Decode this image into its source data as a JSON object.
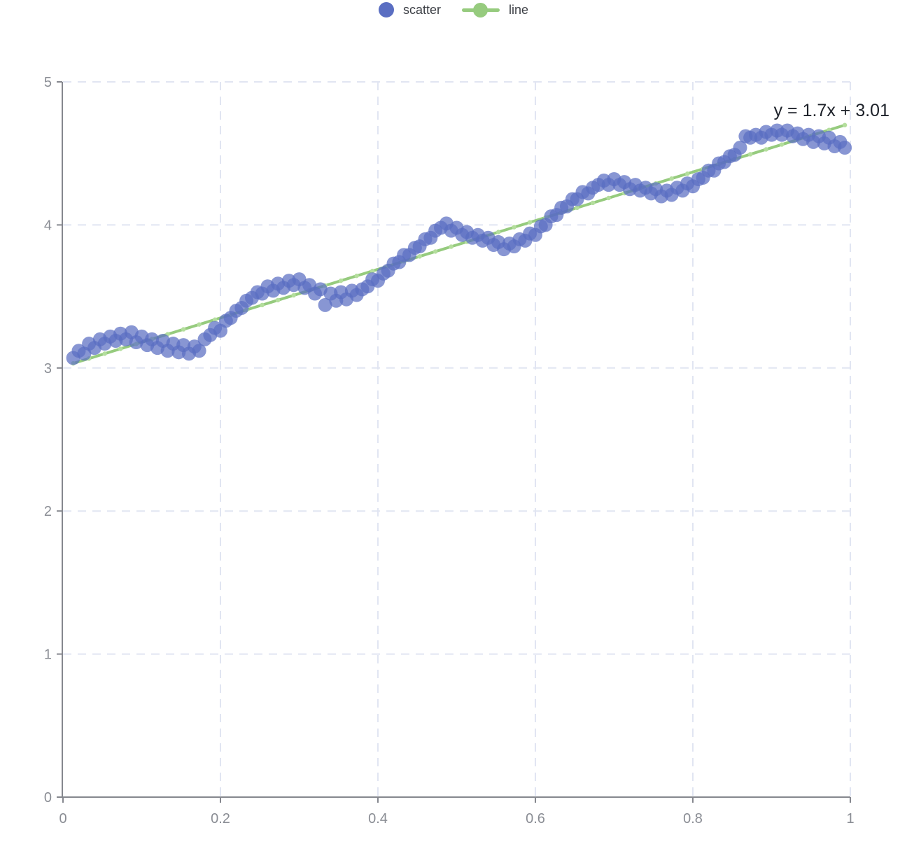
{
  "chart_data": {
    "type": "scatter",
    "title": "",
    "annotation": "y = 1.7x + 3.01",
    "legend": {
      "position": "top",
      "items": [
        {
          "label": "scatter",
          "marker": "circle"
        },
        {
          "label": "line",
          "marker": "line-with-dot"
        }
      ]
    },
    "x_axis": {
      "label": "",
      "range": [
        0,
        1
      ],
      "ticks": [
        0,
        0.2,
        0.4,
        0.6,
        0.8,
        1
      ],
      "tick_labels": [
        "0",
        "0.2",
        "0.4",
        "0.6",
        "0.8",
        "1"
      ],
      "grid": true
    },
    "y_axis": {
      "label": "",
      "range": [
        0,
        5
      ],
      "ticks": [
        0,
        1,
        2,
        3,
        4,
        5
      ],
      "tick_labels": [
        "0",
        "1",
        "2",
        "3",
        "4",
        "5"
      ],
      "grid": true
    },
    "colors": {
      "scatter": "#5A6EC2",
      "line": "#96CB7E",
      "line_marker": "#B4DE9D",
      "grid": "#E1E5F2",
      "axis": "#85878E",
      "tick_label": "#8A8D94",
      "legend_text": "#3C3F45",
      "annotation": "#1D2129",
      "background": "#FFFFFF"
    },
    "series": [
      {
        "name": "scatter",
        "type": "scatter",
        "marker_radius": 10,
        "marker_opacity": 0.72,
        "points": [
          [
            0.013,
            3.07
          ],
          [
            0.02,
            3.12
          ],
          [
            0.027,
            3.1
          ],
          [
            0.033,
            3.17
          ],
          [
            0.04,
            3.14
          ],
          [
            0.047,
            3.2
          ],
          [
            0.053,
            3.17
          ],
          [
            0.06,
            3.22
          ],
          [
            0.067,
            3.19
          ],
          [
            0.073,
            3.24
          ],
          [
            0.08,
            3.2
          ],
          [
            0.087,
            3.25
          ],
          [
            0.093,
            3.18
          ],
          [
            0.1,
            3.22
          ],
          [
            0.107,
            3.16
          ],
          [
            0.113,
            3.2
          ],
          [
            0.12,
            3.14
          ],
          [
            0.127,
            3.19
          ],
          [
            0.133,
            3.12
          ],
          [
            0.14,
            3.17
          ],
          [
            0.147,
            3.11
          ],
          [
            0.153,
            3.16
          ],
          [
            0.16,
            3.1
          ],
          [
            0.167,
            3.15
          ],
          [
            0.173,
            3.12
          ],
          [
            0.18,
            3.2
          ],
          [
            0.187,
            3.23
          ],
          [
            0.193,
            3.28
          ],
          [
            0.2,
            3.26
          ],
          [
            0.207,
            3.33
          ],
          [
            0.213,
            3.35
          ],
          [
            0.22,
            3.4
          ],
          [
            0.227,
            3.42
          ],
          [
            0.233,
            3.47
          ],
          [
            0.24,
            3.49
          ],
          [
            0.247,
            3.53
          ],
          [
            0.253,
            3.52
          ],
          [
            0.26,
            3.57
          ],
          [
            0.267,
            3.54
          ],
          [
            0.273,
            3.59
          ],
          [
            0.28,
            3.56
          ],
          [
            0.287,
            3.61
          ],
          [
            0.293,
            3.58
          ],
          [
            0.3,
            3.62
          ],
          [
            0.307,
            3.56
          ],
          [
            0.313,
            3.58
          ],
          [
            0.32,
            3.52
          ],
          [
            0.327,
            3.55
          ],
          [
            0.333,
            3.44
          ],
          [
            0.34,
            3.52
          ],
          [
            0.347,
            3.47
          ],
          [
            0.353,
            3.53
          ],
          [
            0.36,
            3.48
          ],
          [
            0.367,
            3.54
          ],
          [
            0.373,
            3.51
          ],
          [
            0.38,
            3.55
          ],
          [
            0.387,
            3.57
          ],
          [
            0.393,
            3.62
          ],
          [
            0.4,
            3.61
          ],
          [
            0.407,
            3.66
          ],
          [
            0.413,
            3.68
          ],
          [
            0.42,
            3.73
          ],
          [
            0.427,
            3.74
          ],
          [
            0.433,
            3.79
          ],
          [
            0.44,
            3.79
          ],
          [
            0.447,
            3.84
          ],
          [
            0.453,
            3.85
          ],
          [
            0.46,
            3.9
          ],
          [
            0.467,
            3.91
          ],
          [
            0.473,
            3.96
          ],
          [
            0.48,
            3.98
          ],
          [
            0.487,
            4.01
          ],
          [
            0.493,
            3.96
          ],
          [
            0.5,
            3.98
          ],
          [
            0.507,
            3.93
          ],
          [
            0.513,
            3.95
          ],
          [
            0.52,
            3.91
          ],
          [
            0.527,
            3.93
          ],
          [
            0.533,
            3.89
          ],
          [
            0.54,
            3.91
          ],
          [
            0.547,
            3.86
          ],
          [
            0.553,
            3.88
          ],
          [
            0.56,
            3.83
          ],
          [
            0.567,
            3.87
          ],
          [
            0.573,
            3.85
          ],
          [
            0.58,
            3.9
          ],
          [
            0.587,
            3.89
          ],
          [
            0.593,
            3.94
          ],
          [
            0.6,
            3.93
          ],
          [
            0.607,
            3.99
          ],
          [
            0.613,
            4.0
          ],
          [
            0.62,
            4.06
          ],
          [
            0.627,
            4.07
          ],
          [
            0.633,
            4.12
          ],
          [
            0.64,
            4.13
          ],
          [
            0.647,
            4.18
          ],
          [
            0.653,
            4.18
          ],
          [
            0.66,
            4.23
          ],
          [
            0.667,
            4.22
          ],
          [
            0.673,
            4.26
          ],
          [
            0.68,
            4.28
          ],
          [
            0.687,
            4.31
          ],
          [
            0.693,
            4.28
          ],
          [
            0.7,
            4.32
          ],
          [
            0.707,
            4.28
          ],
          [
            0.713,
            4.3
          ],
          [
            0.72,
            4.25
          ],
          [
            0.727,
            4.28
          ],
          [
            0.733,
            4.24
          ],
          [
            0.74,
            4.26
          ],
          [
            0.747,
            4.22
          ],
          [
            0.753,
            4.25
          ],
          [
            0.76,
            4.2
          ],
          [
            0.767,
            4.24
          ],
          [
            0.773,
            4.21
          ],
          [
            0.78,
            4.26
          ],
          [
            0.787,
            4.24
          ],
          [
            0.793,
            4.29
          ],
          [
            0.8,
            4.27
          ],
          [
            0.807,
            4.32
          ],
          [
            0.813,
            4.33
          ],
          [
            0.82,
            4.38
          ],
          [
            0.827,
            4.38
          ],
          [
            0.833,
            4.43
          ],
          [
            0.84,
            4.44
          ],
          [
            0.847,
            4.48
          ],
          [
            0.853,
            4.49
          ],
          [
            0.86,
            4.54
          ],
          [
            0.867,
            4.62
          ],
          [
            0.873,
            4.61
          ],
          [
            0.88,
            4.63
          ],
          [
            0.887,
            4.61
          ],
          [
            0.893,
            4.65
          ],
          [
            0.9,
            4.63
          ],
          [
            0.907,
            4.66
          ],
          [
            0.913,
            4.63
          ],
          [
            0.92,
            4.66
          ],
          [
            0.927,
            4.62
          ],
          [
            0.933,
            4.64
          ],
          [
            0.94,
            4.6
          ],
          [
            0.947,
            4.63
          ],
          [
            0.953,
            4.58
          ],
          [
            0.96,
            4.62
          ],
          [
            0.967,
            4.57
          ],
          [
            0.973,
            4.61
          ],
          [
            0.98,
            4.55
          ],
          [
            0.987,
            4.58
          ],
          [
            0.993,
            4.54
          ]
        ]
      },
      {
        "name": "line",
        "type": "line",
        "width": 4,
        "slope": 1.7,
        "intercept": 3.01,
        "points": [
          [
            0.013,
            3.032
          ],
          [
            0.993,
            4.698
          ]
        ]
      }
    ]
  }
}
